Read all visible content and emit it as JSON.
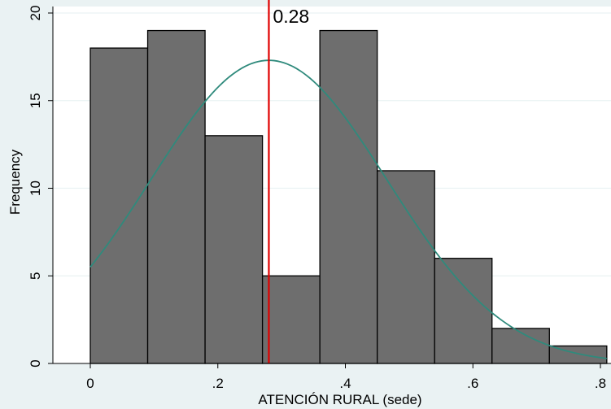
{
  "colors": {
    "outer_background": "#eaf2f3",
    "plot_background": "#ffffff",
    "grid": "#eaf2f3",
    "bar_fill": "#6e6e6e",
    "bar_edge": "#000000",
    "curve": "#2f8a7c",
    "mean_line": "#e00000",
    "axis": "#000000"
  },
  "chart_data": {
    "type": "bar",
    "title": "",
    "xlabel": "ATENCIÓN RURAL (sede)",
    "ylabel": "Frequency",
    "xlim": [
      -0.07,
      0.805
    ],
    "ylim": [
      0,
      20.2
    ],
    "xticks": [
      0,
      0.2,
      0.4,
      0.6,
      0.8
    ],
    "xtick_labels": [
      "0",
      ".2",
      ".4",
      ".6",
      ".8"
    ],
    "yticks": [
      0,
      5,
      10,
      15,
      20
    ],
    "ytick_labels": [
      "0",
      "5",
      "10",
      "15",
      "20"
    ],
    "grid": true,
    "bins": [
      {
        "start": 0.0,
        "end": 0.09,
        "value": 18
      },
      {
        "start": 0.09,
        "end": 0.18,
        "value": 19
      },
      {
        "start": 0.18,
        "end": 0.27,
        "value": 13
      },
      {
        "start": 0.27,
        "end": 0.36,
        "value": 5
      },
      {
        "start": 0.36,
        "end": 0.45,
        "value": 19
      },
      {
        "start": 0.45,
        "end": 0.54,
        "value": 11
      },
      {
        "start": 0.54,
        "end": 0.63,
        "value": 6
      },
      {
        "start": 0.63,
        "end": 0.72,
        "value": 2
      },
      {
        "start": 0.72,
        "end": 0.81,
        "value": 1
      }
    ],
    "normal_curve": {
      "mean": 0.28,
      "sd": 0.185,
      "peak": 17.3,
      "x_range": [
        0.0,
        0.81
      ]
    },
    "reference_line": {
      "x": 0.28,
      "label": "0.28"
    }
  }
}
